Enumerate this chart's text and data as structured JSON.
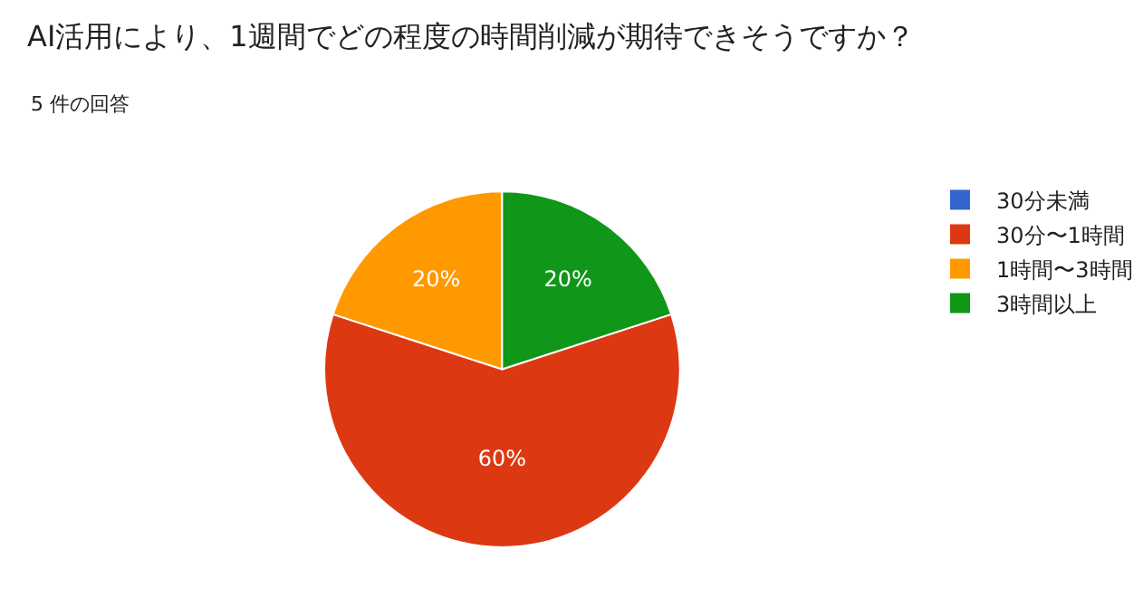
{
  "chart_data": {
    "type": "pie",
    "title": "AI活用により、1週間でどの程度の時間削減が期待できそうですか？",
    "subtitle": "5 件の回答",
    "categories": [
      "30分未満",
      "30分〜1時間",
      "1時間〜3時間",
      "3時間以上"
    ],
    "values": [
      0,
      60,
      20,
      20
    ],
    "colors": [
      "#3366cc",
      "#dc3912",
      "#ff9900",
      "#109618"
    ],
    "value_labels": [
      null,
      "60%",
      "20%",
      "20%"
    ],
    "legend": "top right"
  }
}
